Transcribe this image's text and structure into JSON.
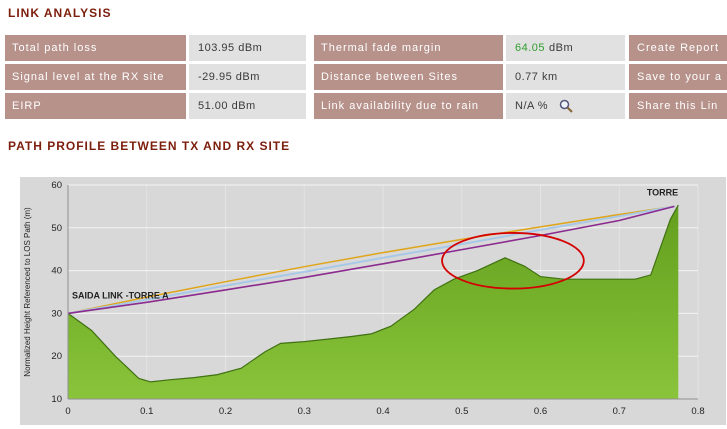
{
  "titles": {
    "link_analysis": "LINK ANALYSIS",
    "path_profile": "PATH PROFILE BETWEEN TX AND RX SITE"
  },
  "colors": {
    "header_text": "#7c1e0c",
    "cell_label_bg": "#b7928b",
    "cell_value_bg": "#e1e1e1",
    "thermal_margin_green": "#2f9e2f"
  },
  "table": {
    "left": [
      {
        "label": "Total path loss",
        "value": "103.95 dBm"
      },
      {
        "label": "Signal level at the RX site",
        "value": "-29.95 dBm"
      },
      {
        "label": "EIRP",
        "value": "51.00 dBm"
      }
    ],
    "mid": [
      {
        "label": "Thermal fade margin",
        "value": "64.05",
        "unit": "dBm",
        "value_color": "#2f9e2f"
      },
      {
        "label": "Distance between Sites",
        "value": "0.77 km"
      },
      {
        "label": "Link availability due to rain",
        "value": "N/A %"
      }
    ],
    "actions": [
      {
        "label": "Create Report"
      },
      {
        "label": "Save to your a"
      },
      {
        "label": "Share this Lin"
      }
    ]
  },
  "chart_data": {
    "type": "area",
    "title": "",
    "xlabel": "",
    "ylabel": "Normalized Height Referenced to LOS Path (m)",
    "xlim": [
      0,
      0.8
    ],
    "ylim": [
      10,
      60
    ],
    "xticks": [
      "0",
      "0.1",
      "0.2",
      "0.3",
      "0.4",
      "0.5",
      "0.6",
      "0.7",
      "0.8"
    ],
    "yticks": [
      10,
      20,
      30,
      40,
      50,
      60
    ],
    "grid": "on",
    "legend_position": "none",
    "colors": {
      "background": "#d8d8d8",
      "grid": "#ffffff",
      "axis": "#909090",
      "text": "#222222"
    },
    "terrain": {
      "name": "terrain-elevation-profile",
      "fill_top": "#639f1d",
      "fill_bottom": "#8ac43b",
      "stroke": "#407112",
      "points": [
        [
          0,
          30
        ],
        [
          0.03,
          26
        ],
        [
          0.06,
          20
        ],
        [
          0.09,
          14.8
        ],
        [
          0.105,
          14
        ],
        [
          0.13,
          14.5
        ],
        [
          0.16,
          15
        ],
        [
          0.19,
          15.7
        ],
        [
          0.22,
          17.2
        ],
        [
          0.25,
          21
        ],
        [
          0.27,
          23
        ],
        [
          0.3,
          23.4
        ],
        [
          0.33,
          24
        ],
        [
          0.36,
          24.6
        ],
        [
          0.385,
          25.2
        ],
        [
          0.41,
          27
        ],
        [
          0.44,
          31
        ],
        [
          0.465,
          35.5
        ],
        [
          0.49,
          38
        ],
        [
          0.52,
          40
        ],
        [
          0.555,
          43
        ],
        [
          0.58,
          41
        ],
        [
          0.6,
          38.6
        ],
        [
          0.63,
          38
        ],
        [
          0.68,
          38
        ],
        [
          0.72,
          38
        ],
        [
          0.74,
          39
        ],
        [
          0.765,
          52
        ],
        [
          0.775,
          55.3
        ]
      ]
    },
    "series": [
      {
        "name": "upper-fresnel-zone",
        "color": "#dfa518",
        "width": 1.5,
        "points": [
          [
            0,
            30
          ],
          [
            0.1,
            33.8
          ],
          [
            0.2,
            37.4
          ],
          [
            0.3,
            40.9
          ],
          [
            0.4,
            44.2
          ],
          [
            0.5,
            47.3
          ],
          [
            0.6,
            50.2
          ],
          [
            0.7,
            53.1
          ],
          [
            0.77,
            55
          ]
        ]
      },
      {
        "name": "line-of-sight",
        "color": "#a8c8e8",
        "width": 2,
        "points": [
          [
            0,
            30
          ],
          [
            0.1,
            33.2
          ],
          [
            0.2,
            36.5
          ],
          [
            0.3,
            39.7
          ],
          [
            0.4,
            43
          ],
          [
            0.5,
            46.2
          ],
          [
            0.6,
            49.5
          ],
          [
            0.7,
            52.7
          ],
          [
            0.77,
            55
          ]
        ]
      },
      {
        "name": "lower-fresnel-zone",
        "color": "#8b2a8f",
        "width": 1.6,
        "points": [
          [
            0,
            30
          ],
          [
            0.1,
            32.6
          ],
          [
            0.2,
            35.5
          ],
          [
            0.3,
            38.4
          ],
          [
            0.4,
            41.6
          ],
          [
            0.5,
            44.9
          ],
          [
            0.6,
            48.2
          ],
          [
            0.7,
            51.7
          ],
          [
            0.77,
            55
          ]
        ]
      }
    ],
    "annotations": [
      {
        "type": "ellipse",
        "cx": 0.565,
        "cy": 42.3,
        "rx": 0.09,
        "ry": 6.5,
        "color": "#d40000"
      }
    ],
    "labels": [
      {
        "text": "SAIDA LINK -TORRE A",
        "x": 0.005,
        "y": 33.5,
        "anchor": "start"
      },
      {
        "text": "TORRE",
        "x": 0.735,
        "y": 57.6,
        "anchor": "start"
      }
    ]
  }
}
